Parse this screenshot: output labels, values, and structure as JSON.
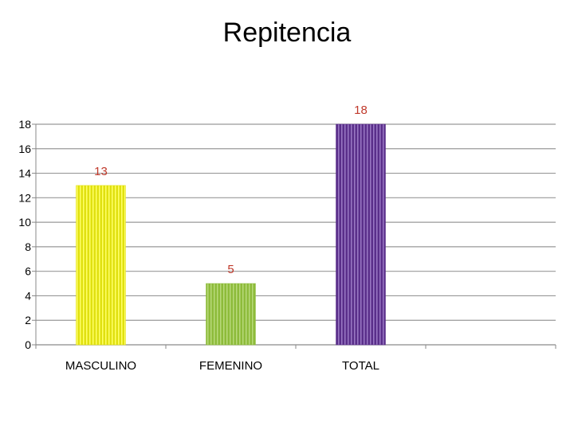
{
  "chart_data": {
    "type": "bar",
    "title": "Repitencia",
    "categories": [
      "MASCULINO",
      "FEMENINO",
      "TOTAL"
    ],
    "values": [
      13,
      5,
      18
    ],
    "data_labels": [
      "13",
      "5",
      "18"
    ],
    "xlabel": "",
    "ylabel": "",
    "ylim": [
      0,
      18
    ],
    "yticks": [
      0,
      2,
      4,
      6,
      8,
      10,
      12,
      14,
      16,
      18
    ],
    "grid": true,
    "legend": "none",
    "bar_colors": [
      "#e0e010",
      "#8dbb3a",
      "#5a2f8a"
    ],
    "bar_highlight_colors": [
      "#ffff66",
      "#b8d97a",
      "#9a78c4"
    ],
    "data_label_color": "#c0392b",
    "grid_color": "#999999",
    "axis_color": "#888888",
    "empty_slots": 1
  }
}
